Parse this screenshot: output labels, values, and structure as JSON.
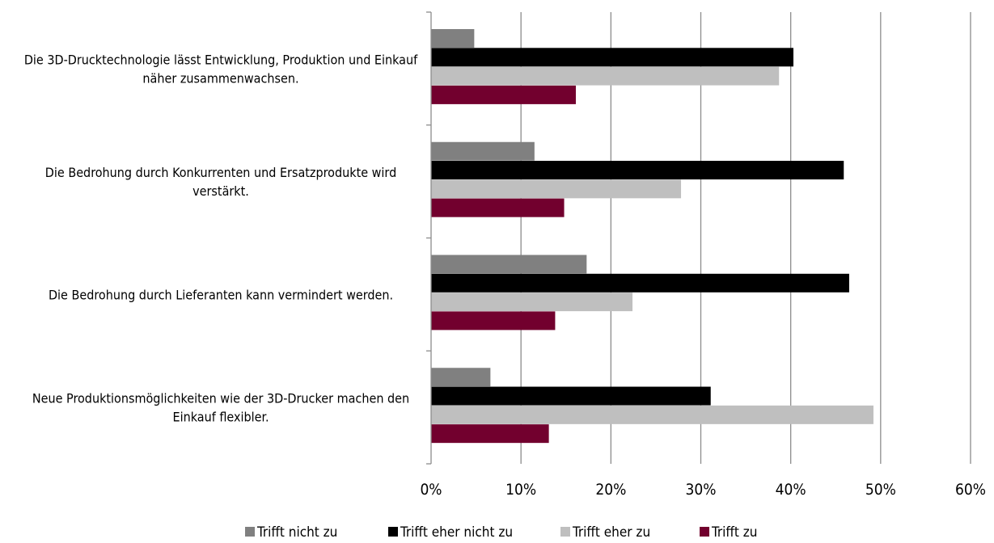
{
  "chart_data": {
    "type": "bar",
    "orientation": "horizontal",
    "categories": [
      "Die 3D-Drucktechnologie lässt Entwicklung, Produktion und Einkauf näher zusammenwachsen.",
      "Die Bedrohung durch Konkurrenten und Ersatzprodukte wird verstärkt.",
      "Die Bedrohung durch Lieferanten kann vermindert werden.",
      "Neue Produktionsmöglichkeiten wie der 3D-Drucker machen den Einkauf flexibler."
    ],
    "category_label_lines": [
      [
        "Die 3D-Drucktechnologie lässt Entwicklung, Produktion und Einkauf",
        "näher zusammenwachsen."
      ],
      [
        "Die Bedrohung durch Konkurrenten und Ersatzprodukte wird",
        "verstärkt."
      ],
      [
        "Die Bedrohung durch Lieferanten kann vermindert werden."
      ],
      [
        "Neue Produktionsmöglichkeiten wie der 3D-Drucker machen den",
        "Einkauf flexibler."
      ]
    ],
    "series": [
      {
        "name": "Trifft nicht zu",
        "color": "#808080",
        "values": [
          4.8,
          11.5,
          17.3,
          6.6
        ]
      },
      {
        "name": "Trifft eher nicht zu",
        "color": "#000000",
        "values": [
          40.3,
          45.9,
          46.5,
          31.1
        ]
      },
      {
        "name": "Trifft eher zu",
        "color": "#bfbfbf",
        "values": [
          38.7,
          27.8,
          22.4,
          49.2
        ]
      },
      {
        "name": "Trifft zu",
        "color": "#72002e",
        "values": [
          16.1,
          14.8,
          13.8,
          13.1
        ]
      }
    ],
    "xlim": [
      0,
      60
    ],
    "x_ticks": [
      0,
      10,
      20,
      30,
      40,
      50,
      60
    ],
    "x_tick_labels": [
      "0%",
      "10%",
      "20%",
      "30%",
      "40%",
      "50%",
      "60%"
    ],
    "grid": "vertical",
    "legend_position": "bottom",
    "title": "",
    "xlabel": "",
    "ylabel": ""
  }
}
